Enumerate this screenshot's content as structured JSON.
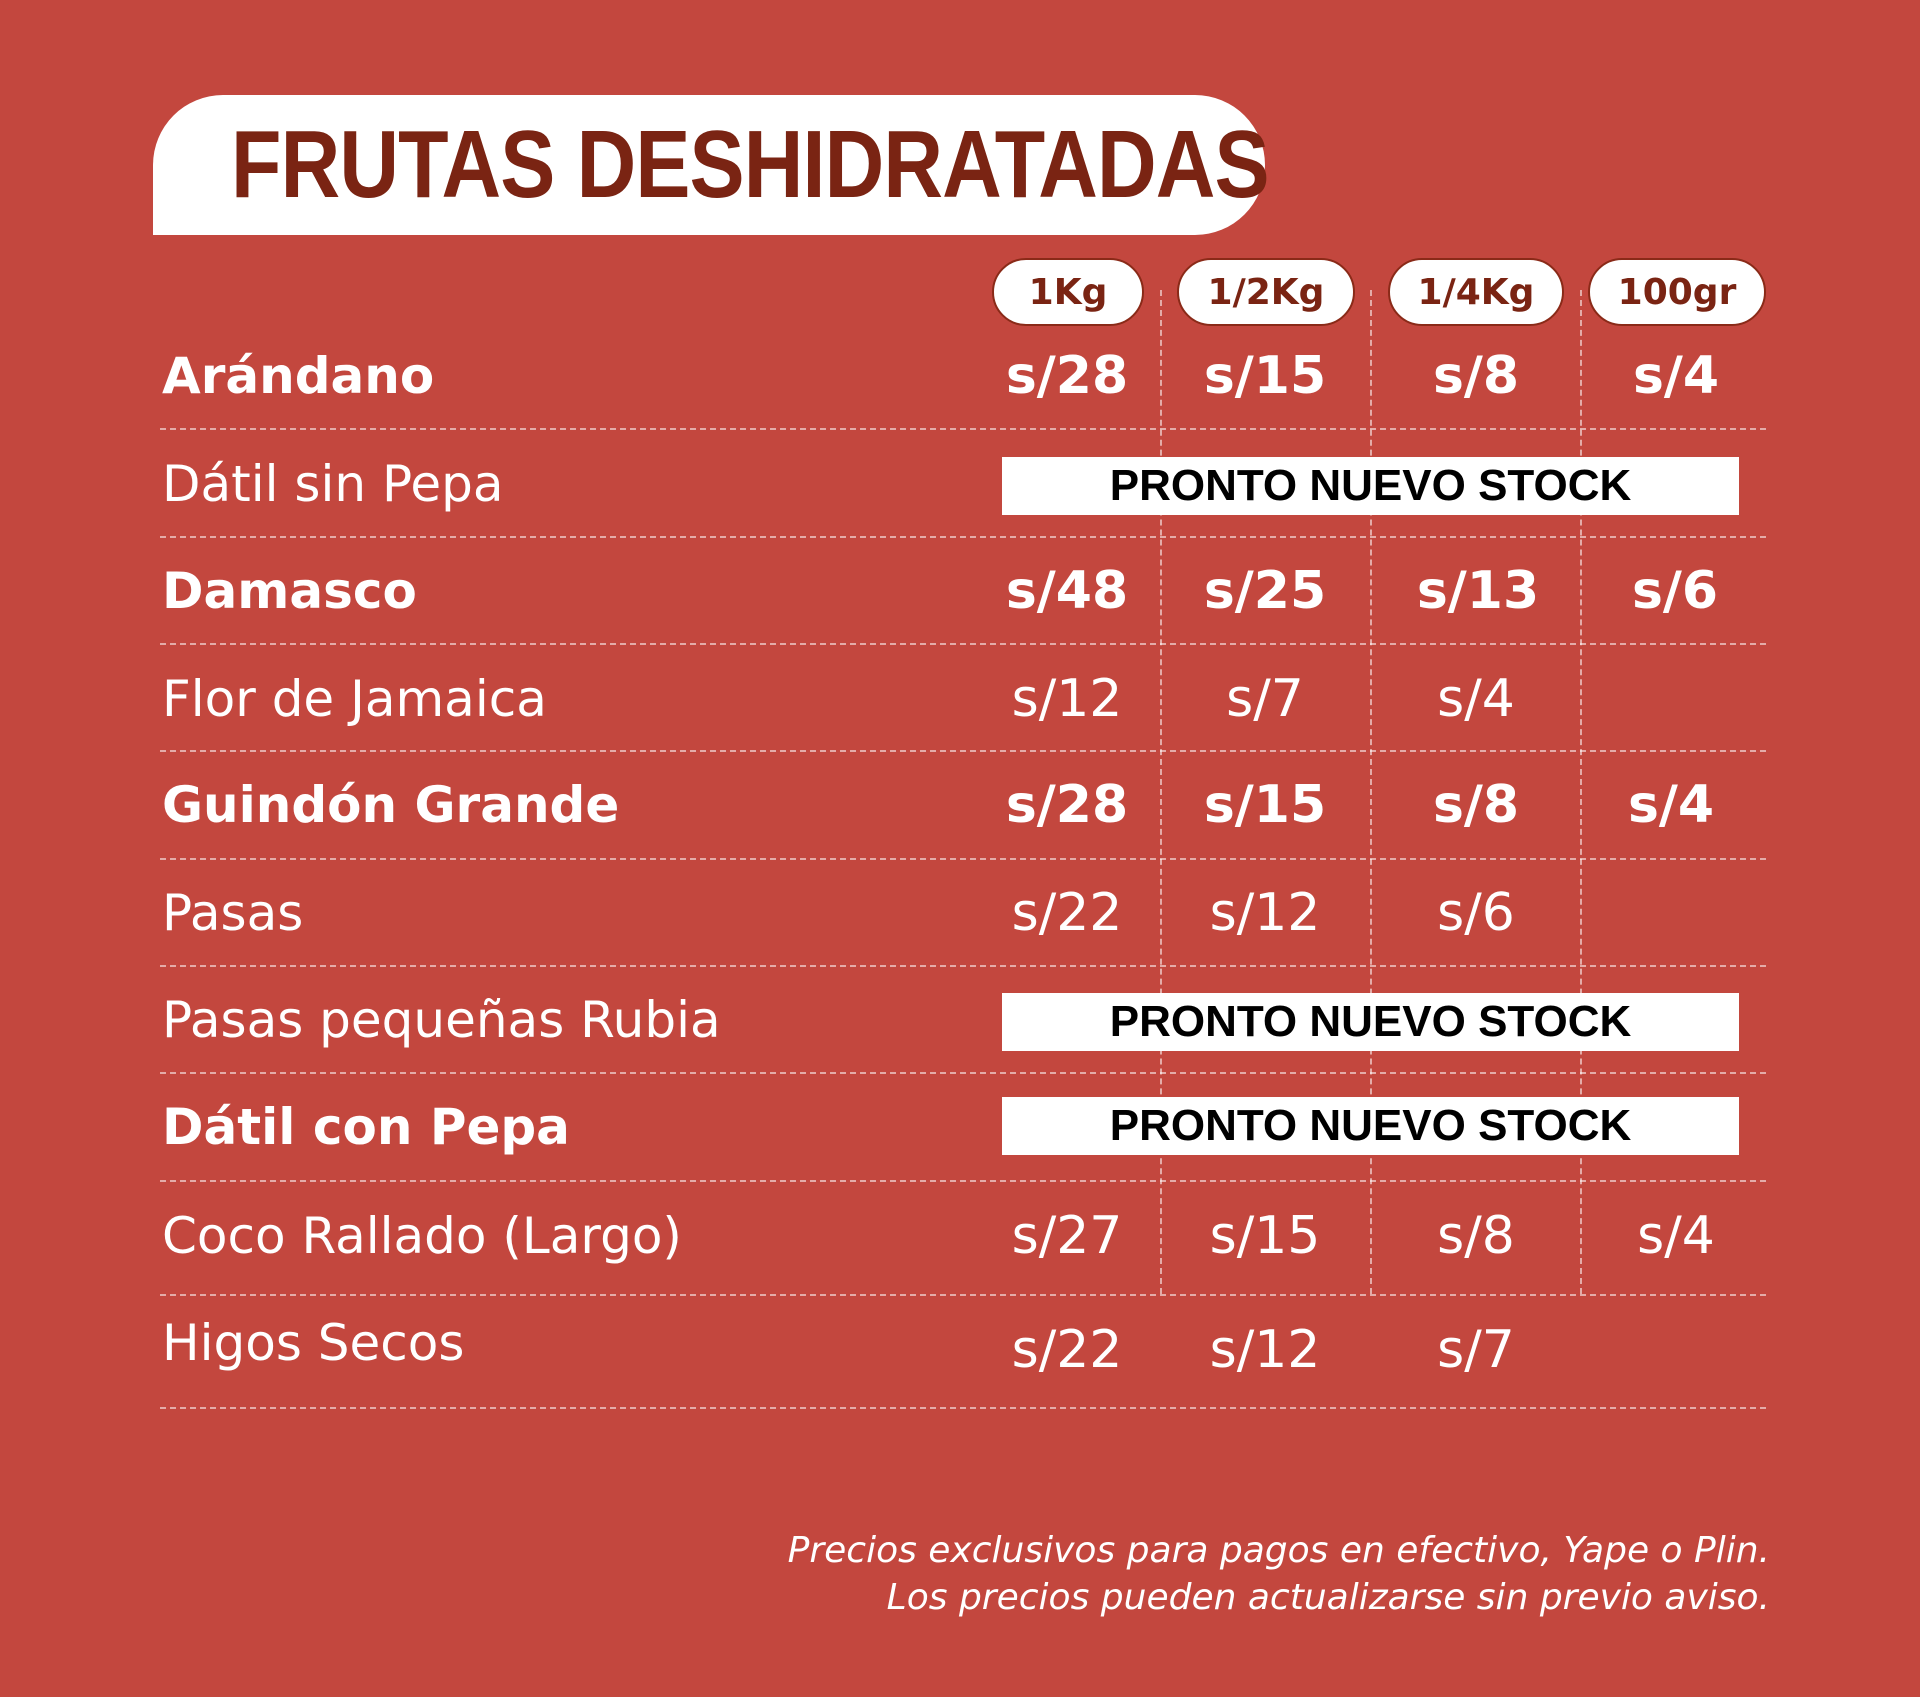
{
  "title": "FRUTAS DESHIDRATADAS",
  "sizes": [
    "1Kg",
    "1/2Kg",
    "1/4Kg",
    "100gr"
  ],
  "rows": [
    {
      "name": "Arándano",
      "prices": [
        "s/28",
        "s/15",
        "s/8",
        "s/4"
      ]
    },
    {
      "name": "Dátil sin Pepa",
      "status": "PRONTO NUEVO STOCK"
    },
    {
      "name": "Damasco",
      "prices": [
        "s/48",
        "s/25",
        "s/13",
        "s/6"
      ]
    },
    {
      "name": "Flor de Jamaica",
      "prices": [
        "s/12",
        "s/7",
        "s/4",
        ""
      ]
    },
    {
      "name": "Guindón Grande",
      "prices": [
        "s/28",
        "s/15",
        "s/8",
        "s/4"
      ]
    },
    {
      "name": "Pasas",
      "prices": [
        "s/22",
        "s/12",
        "s/6",
        ""
      ]
    },
    {
      "name": "Pasas pequeñas Rubia",
      "status": "PRONTO NUEVO STOCK"
    },
    {
      "name": "Dátil con Pepa",
      "status": "PRONTO NUEVO STOCK"
    },
    {
      "name": "Coco Rallado (Largo)",
      "prices": [
        "s/27",
        "s/15",
        "s/8",
        "s/4"
      ]
    },
    {
      "name": "Higos Secos",
      "prices": [
        "s/22",
        "s/12",
        "s/7",
        ""
      ]
    }
  ],
  "footnote": {
    "line1": "Precios exclusivos para pagos en efectivo, Yape o Plin.",
    "line2": "Los precios pueden actualizarse sin previo aviso."
  },
  "colors": {
    "background": "#c3473e",
    "title_text": "#7a2413",
    "pill_border": "#8a2a18",
    "banner_text": "#000000"
  }
}
